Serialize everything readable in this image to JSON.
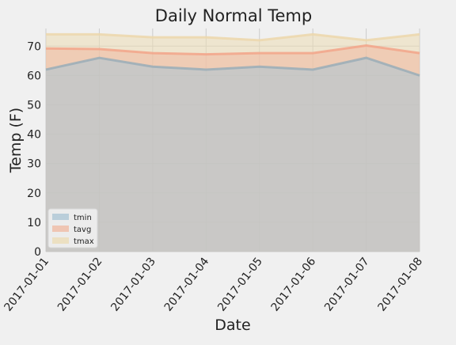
{
  "chart_data": {
    "type": "area",
    "title": "Daily Normal Temp",
    "xlabel": "Date",
    "ylabel": "Temp (F)",
    "x": [
      "2017-01-01",
      "2017-01-02",
      "2017-01-03",
      "2017-01-04",
      "2017-01-05",
      "2017-01-06",
      "2017-01-07",
      "2017-01-08"
    ],
    "ylim": [
      0,
      76
    ],
    "yticks": [
      0,
      10,
      20,
      30,
      40,
      50,
      60,
      70
    ],
    "grid": true,
    "legend_position": "lower-left",
    "series": [
      {
        "name": "tmin",
        "values": [
          62.0,
          66.0,
          63.0,
          62.0,
          63.0,
          62.0,
          66.0,
          60.0
        ],
        "color": "#a9c4d4"
      },
      {
        "name": "tavg",
        "values": [
          69.2,
          69.0,
          67.6,
          67.2,
          67.6,
          67.6,
          70.2,
          67.6
        ],
        "color": "#f0b8a0"
      },
      {
        "name": "tmax",
        "values": [
          74.0,
          74.0,
          73.0,
          73.0,
          72.0,
          74.0,
          72.0,
          74.0
        ],
        "color": "#ecdcb4"
      }
    ],
    "line_colors": {
      "tmin": "#9aadb7",
      "tavg": "#f2a48a",
      "tmax": "#ecd7ac"
    },
    "fill_order": [
      "tmax",
      "tavg",
      "tmin"
    ]
  }
}
